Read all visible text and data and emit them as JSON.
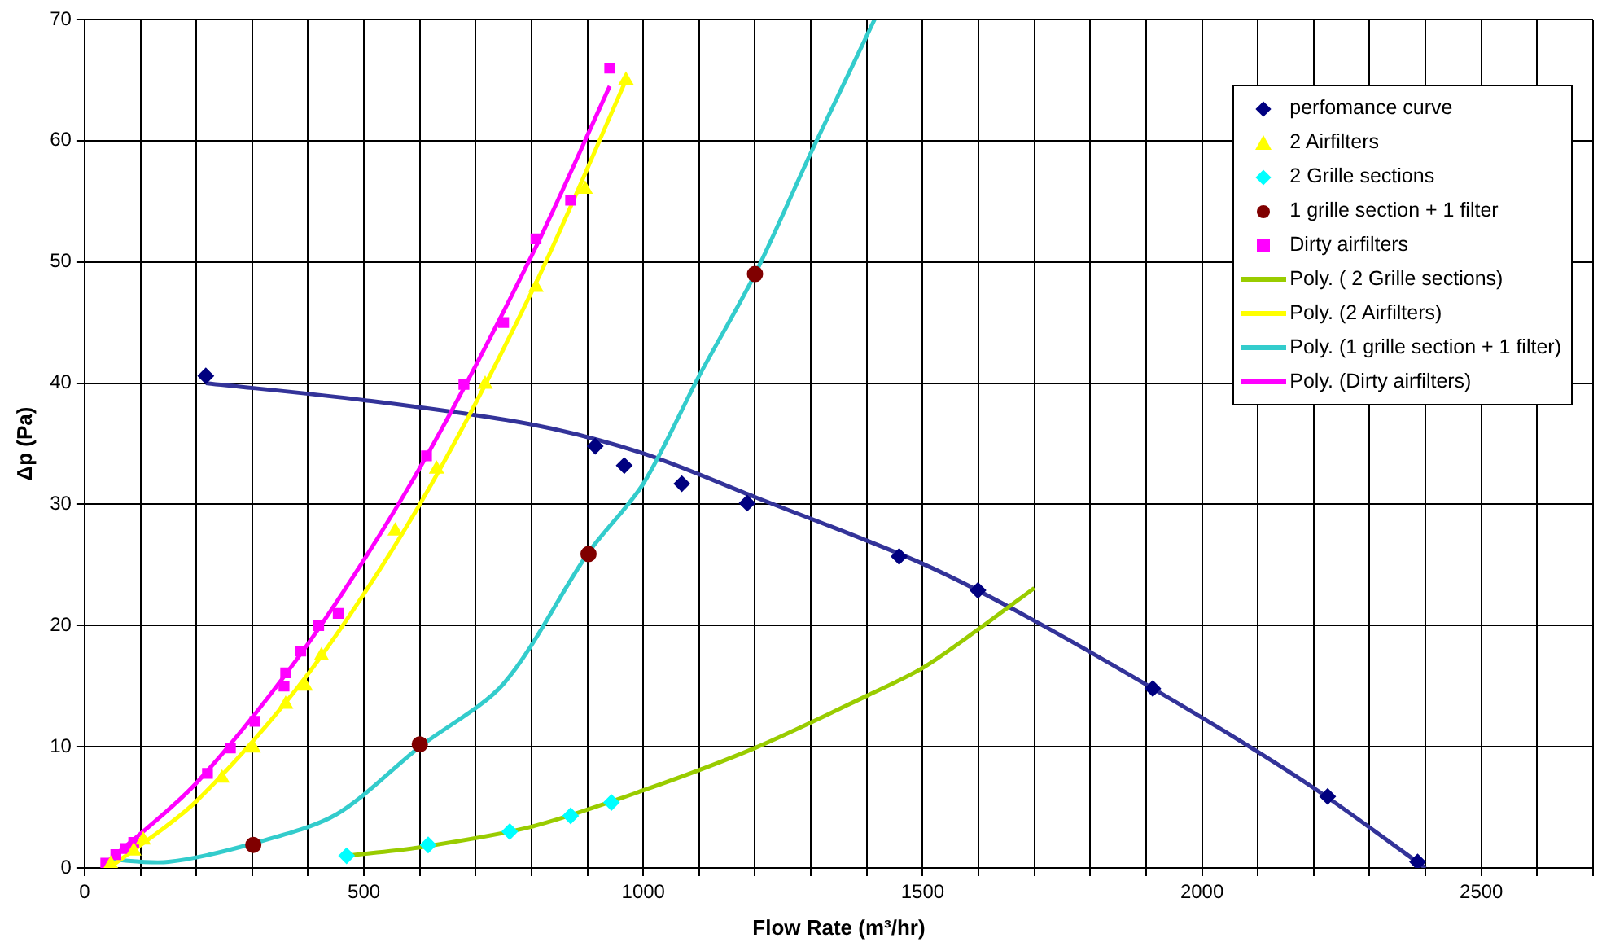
{
  "chart_data": {
    "type": "scatter",
    "xlabel": "Flow Rate (m³/hr)",
    "ylabel": "Δp (Pa)",
    "xlim": [
      0,
      2700
    ],
    "xticks": [
      0,
      {
        "value": 100,
        "label": null
      },
      {
        "value": 200,
        "label": null
      },
      {
        "value": 300,
        "label": null
      },
      {
        "value": 400,
        "label": null
      },
      500,
      {
        "value": 600,
        "label": null
      },
      {
        "value": 700,
        "label": null
      },
      {
        "value": 800,
        "label": null
      },
      {
        "value": 900,
        "label": null
      },
      1000,
      {
        "value": 1100,
        "label": null
      },
      {
        "value": 1200,
        "label": null
      },
      {
        "value": 1300,
        "label": null
      },
      {
        "value": 1400,
        "label": null
      },
      1500,
      {
        "value": 1600,
        "label": null
      },
      {
        "value": 1700,
        "label": null
      },
      {
        "value": 1800,
        "label": null
      },
      {
        "value": 1900,
        "label": null
      },
      2000,
      {
        "value": 2100,
        "label": null
      },
      {
        "value": 2200,
        "label": null
      },
      {
        "value": 2300,
        "label": null
      },
      {
        "value": 2400,
        "label": null
      },
      2500,
      {
        "value": 2600,
        "label": null
      },
      {
        "value": 2700,
        "label": null
      }
    ],
    "ylim": [
      0,
      70
    ],
    "yticks": [
      0,
      10,
      20,
      30,
      40,
      50,
      60,
      70
    ],
    "grid": true,
    "legend": "top right",
    "series": [
      {
        "name": "perfomance curve",
        "type": "scatter",
        "marker": "diamond",
        "color": "#000080",
        "x": [
          217,
          914,
          966,
          1069,
          1186,
          1458,
          1599,
          1912,
          2225,
          2386
        ],
        "values": [
          40.6,
          34.8,
          33.2,
          31.7,
          30.1,
          25.7,
          22.9,
          14.8,
          5.9,
          0.5
        ]
      },
      {
        "name": "2 Airfilters",
        "type": "scatter",
        "marker": "triangle",
        "color": "#ffff00",
        "x": [
          47,
          88,
          105,
          246,
          302,
          360,
          395,
          424,
          556,
          630,
          717,
          808,
          896,
          969
        ],
        "values": [
          0.3,
          1.4,
          2.3,
          7.4,
          9.9,
          13.5,
          15,
          17.5,
          27.8,
          32.9,
          39.9,
          47.9,
          56,
          65
        ]
      },
      {
        "name": "2 Grille sections",
        "type": "scatter",
        "marker": "diamond",
        "color": "#00ffff",
        "x": [
          469,
          615,
          761,
          870,
          943
        ],
        "values": [
          1,
          1.9,
          3,
          4.3,
          5.4
        ]
      },
      {
        "name": "1 grille section + 1 filter",
        "type": "scatter",
        "marker": "circle",
        "color": "#800000",
        "x": [
          302,
          600,
          902,
          1200
        ],
        "values": [
          1.9,
          10.2,
          25.9,
          49
        ]
      },
      {
        "name": "Dirty airfilters",
        "type": "scatter",
        "marker": "square",
        "color": "#ff00ff",
        "x": [
          38,
          56,
          73,
          88,
          102,
          220,
          261,
          305,
          357,
          360,
          387,
          419,
          454,
          612,
          679,
          750,
          808,
          870,
          940
        ],
        "values": [
          0.4,
          1.1,
          1.6,
          2.1,
          null,
          7.8,
          9.9,
          12.1,
          15,
          16.1,
          17.9,
          20,
          21,
          34,
          39.9,
          45,
          51.9,
          55.1,
          66
        ]
      },
      {
        "name": "Poly. ( 2 Grille sections)",
        "type": "line",
        "marker": "none",
        "color": "#99cc00",
        "x": [
          469,
          600,
          800,
          1000,
          1200,
          1400,
          1500,
          1600,
          1700
        ],
        "values": [
          1,
          1.7,
          3.4,
          6.4,
          9.9,
          14.2,
          16.5,
          19.7,
          23.1
        ]
      },
      {
        "name": "Poly. (2 Airfilters)",
        "type": "line",
        "marker": "none",
        "color": "#ffff00",
        "x": [
          50,
          200,
          400,
          600,
          800,
          969
        ],
        "values": [
          0.2,
          5.5,
          16,
          30,
          47.5,
          65
        ]
      },
      {
        "name": "Poly. (1 grille section + 1 filter)",
        "type": "line",
        "marker": "none",
        "color": "#33cccc",
        "x": [
          44,
          150,
          300,
          450,
          600,
          750,
          900,
          1000,
          1100,
          1200,
          1300,
          1414
        ],
        "values": [
          0.7,
          0.5,
          2,
          4.4,
          10,
          15.2,
          25.9,
          31.7,
          40.6,
          49,
          59,
          70
        ]
      },
      {
        "name": "Poly. (Dirty airfilters)",
        "type": "line",
        "marker": "none",
        "color": "#ff00ff",
        "x": [
          38,
          200,
          400,
          600,
          800,
          940
        ],
        "values": [
          0.4,
          7,
          18.5,
          33,
          50.5,
          64.5
        ]
      },
      {
        "type": "line",
        "marker": "none",
        "color": "#333399",
        "x": [
          217,
          500,
          800,
          1000,
          1200,
          1500,
          1700,
          2000,
          2200,
          2400
        ],
        "values": [
          40,
          38.6,
          36.6,
          34.2,
          30.6,
          25.1,
          20.4,
          12.4,
          6.6,
          0
        ]
      }
    ]
  }
}
